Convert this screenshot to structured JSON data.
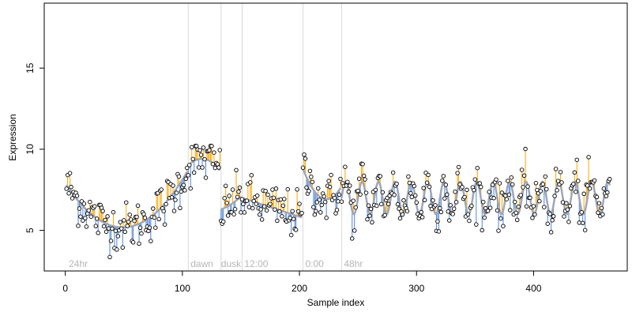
{
  "colors": {
    "above": "#FFA500",
    "below": "#4F86D9",
    "fit": "#9FA6B8",
    "axis": "#000000",
    "vline": "#D9D9D9",
    "annotation": "#B5B5B5"
  },
  "chart_data": {
    "type": "scatter",
    "title": "",
    "xlabel": "Sample index",
    "ylabel": "Expression",
    "xlim": [
      -18,
      480
    ],
    "ylim": [
      2.5,
      19
    ],
    "xticks": [
      0,
      100,
      200,
      300,
      400
    ],
    "yticks": [
      5,
      10,
      15
    ],
    "xtick_labels": [
      "0",
      "100",
      "200",
      "300",
      "400"
    ],
    "ytick_labels": [
      "5",
      "10",
      "15"
    ],
    "grid": false,
    "legend": "none",
    "vlines": [
      105,
      133,
      151,
      203,
      236
    ],
    "annotations": [
      {
        "x": 3,
        "text": "24hr"
      },
      {
        "x": 107,
        "text": "dawn"
      },
      {
        "x": 133,
        "text": "dusk"
      },
      {
        "x": 153,
        "text": "12:00"
      },
      {
        "x": 205,
        "text": "0:00"
      },
      {
        "x": 238,
        "text": "48hr"
      }
    ],
    "segments": [
      {
        "name": "24hr",
        "x": [
          1,
          104
        ],
        "fit": [
          7.8,
          5.2,
          8.6
        ]
      },
      {
        "name": "dawn",
        "x": [
          105,
          132
        ],
        "fit": [
          9.0,
          9.4,
          8.7
        ]
      },
      {
        "name": "dusk",
        "x": [
          133,
          150
        ],
        "fit": [
          6.3,
          6.6,
          7.1
        ]
      },
      {
        "name": "12:00",
        "x": [
          151,
          202
        ],
        "fit": [
          7.0,
          6.4,
          5.8
        ]
      },
      {
        "name": "0:00",
        "x": [
          203,
          235
        ],
        "fit": [
          8.8,
          7.0,
          7.6
        ]
      },
      {
        "name": "48hr",
        "x": [
          236,
          465
        ],
        "fit": [
          7.0,
          7.0,
          7.0
        ],
        "oscillation": {
          "amplitude": 1.0,
          "period": 14
        }
      }
    ],
    "n_points": 465,
    "y_range_points": [
      2.9,
      10.2
    ]
  }
}
